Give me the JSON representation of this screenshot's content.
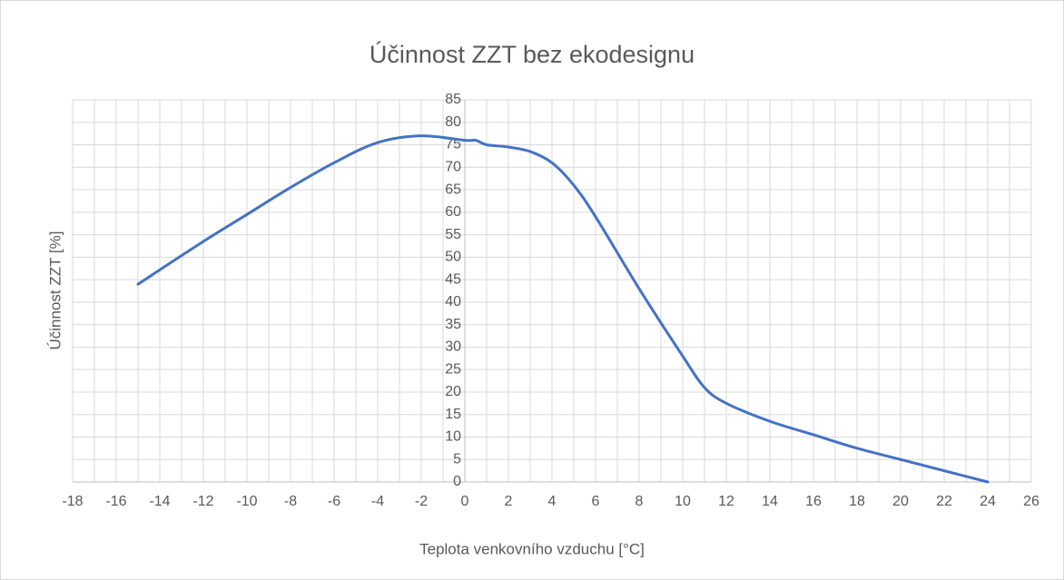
{
  "chart_data": {
    "type": "line",
    "title": "Účinnost ZZT bez ekodesignu",
    "x_label": "Teplota venkovního vzduchu [°C]",
    "y_label": "Účinnost ZZT [%]",
    "x": [
      -15,
      -12,
      -10,
      -8,
      -6,
      -4,
      -2,
      0,
      0.5,
      1,
      2,
      3,
      4,
      5,
      6,
      8,
      10,
      11,
      12,
      14,
      16,
      18,
      20,
      22,
      24
    ],
    "series": [
      {
        "name": "Účinnost ZZT",
        "color": "#4472c4",
        "values": [
          44,
          53.5,
          59.5,
          65.5,
          71,
          75.5,
          77,
          76,
          76,
          75,
          74.5,
          73.5,
          71,
          66,
          59,
          43,
          28,
          21,
          17.5,
          13.5,
          10.5,
          7.5,
          5,
          2.5,
          0
        ]
      }
    ],
    "xlim": [
      -18,
      26
    ],
    "ylim": [
      0,
      85
    ],
    "xticks": [
      -18,
      -16,
      -14,
      -12,
      -10,
      -8,
      -6,
      -4,
      -2,
      0,
      2,
      4,
      6,
      8,
      10,
      12,
      14,
      16,
      18,
      20,
      22,
      24,
      26
    ],
    "yticks": [
      0,
      5,
      10,
      15,
      20,
      25,
      30,
      35,
      40,
      45,
      50,
      55,
      60,
      65,
      70,
      75,
      80,
      85
    ],
    "grid": true,
    "minor_grid": true
  }
}
